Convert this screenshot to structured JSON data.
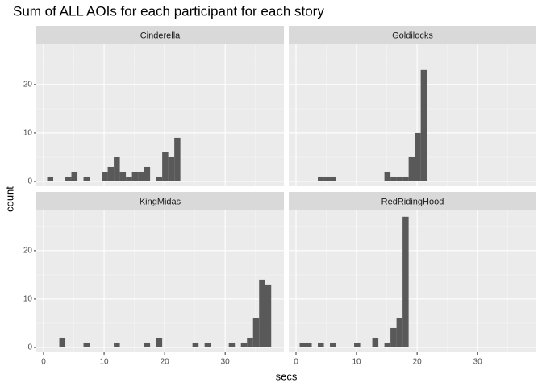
{
  "title": "Sum of ALL AOIs for each participant for each story",
  "xlabel": "secs",
  "ylabel": "count",
  "chart_data": [
    {
      "type": "histogram",
      "title": "Cinderella",
      "color": "#595959",
      "grid": true,
      "bins": [
        0.6,
        1.6,
        2.6,
        3.6,
        4.6,
        5.6,
        6.6,
        7.6,
        8.6,
        9.6,
        10.6,
        11.6,
        12.6,
        13.6,
        14.6,
        15.6,
        16.6,
        17.6,
        18.6,
        19.6,
        20.6,
        21.6,
        22.6,
        23.6,
        24.6,
        25.6,
        26.6,
        27.6,
        28.6,
        29.6,
        30.6,
        31.6,
        32.6,
        33.6,
        34.6,
        35.6,
        36.6,
        37.6
      ],
      "values": [
        1,
        0,
        0,
        1,
        2,
        0,
        1,
        0,
        0,
        2,
        3,
        5,
        2,
        1,
        2,
        2,
        3,
        0,
        1,
        6,
        5,
        9,
        0,
        0,
        0,
        0,
        0,
        0,
        0,
        0,
        0,
        0,
        0,
        0,
        0,
        0,
        0
      ],
      "xlim": [
        -1.2,
        39.7
      ],
      "ylim": [
        -1.0,
        28.3
      ],
      "xticks": [
        0,
        10,
        20,
        30
      ],
      "yticks": [
        0,
        10,
        20
      ]
    },
    {
      "type": "histogram",
      "title": "Goldilocks",
      "color": "#595959",
      "grid": true,
      "bins": [
        0.6,
        1.6,
        2.6,
        3.6,
        4.6,
        5.6,
        6.6,
        7.6,
        8.6,
        9.6,
        10.6,
        11.6,
        12.6,
        13.6,
        14.6,
        15.6,
        16.6,
        17.6,
        18.6,
        19.6,
        20.6,
        21.6,
        22.6,
        23.6,
        24.6,
        25.6,
        26.6,
        27.6,
        28.6,
        29.6,
        30.6,
        31.6,
        32.6,
        33.6,
        34.6,
        35.6,
        36.6,
        37.6
      ],
      "values": [
        0,
        0,
        0,
        1,
        1,
        1,
        0,
        0,
        0,
        0,
        0,
        0,
        0,
        0,
        2,
        1,
        1,
        1,
        5,
        10,
        23,
        0,
        0,
        0,
        0,
        0,
        0,
        0,
        0,
        0,
        0,
        0,
        0,
        0,
        0,
        0,
        0
      ],
      "xlim": [
        -1.2,
        39.7
      ],
      "ylim": [
        -1.0,
        28.3
      ],
      "xticks": [
        0,
        10,
        20,
        30
      ],
      "yticks": [
        0,
        10,
        20
      ]
    },
    {
      "type": "histogram",
      "title": "KingMidas",
      "color": "#595959",
      "grid": true,
      "bins": [
        0.6,
        1.6,
        2.6,
        3.6,
        4.6,
        5.6,
        6.6,
        7.6,
        8.6,
        9.6,
        10.6,
        11.6,
        12.6,
        13.6,
        14.6,
        15.6,
        16.6,
        17.6,
        18.6,
        19.6,
        20.6,
        21.6,
        22.6,
        23.6,
        24.6,
        25.6,
        26.6,
        27.6,
        28.6,
        29.6,
        30.6,
        31.6,
        32.6,
        33.6,
        34.6,
        35.6,
        36.6,
        37.6
      ],
      "values": [
        0,
        0,
        2,
        0,
        0,
        0,
        1,
        0,
        0,
        0,
        0,
        1,
        0,
        0,
        0,
        0,
        1,
        0,
        2,
        0,
        0,
        0,
        0,
        0,
        1,
        0,
        1,
        0,
        0,
        0,
        1,
        0,
        1,
        2,
        6,
        14,
        13
      ],
      "xlim": [
        -1.2,
        39.7
      ],
      "ylim": [
        -1.0,
        28.3
      ],
      "xticks": [
        0,
        10,
        20,
        30
      ],
      "yticks": [
        0,
        10,
        20
      ]
    },
    {
      "type": "histogram",
      "title": "RedRidingHood",
      "color": "#595959",
      "grid": true,
      "bins": [
        0.6,
        1.6,
        2.6,
        3.6,
        4.6,
        5.6,
        6.6,
        7.6,
        8.6,
        9.6,
        10.6,
        11.6,
        12.6,
        13.6,
        14.6,
        15.6,
        16.6,
        17.6,
        18.6,
        19.6,
        20.6,
        21.6,
        22.6,
        23.6,
        24.6,
        25.6,
        26.6,
        27.6,
        28.6,
        29.6,
        30.6,
        31.6,
        32.6,
        33.6,
        34.6,
        35.6,
        36.6,
        37.6
      ],
      "values": [
        1,
        1,
        0,
        1,
        0,
        1,
        0,
        0,
        0,
        1,
        0,
        0,
        2,
        0,
        1,
        4,
        6,
        27,
        0,
        0,
        0,
        0,
        0,
        0,
        0,
        0,
        0,
        0,
        0,
        0,
        0,
        0,
        0,
        0,
        0,
        0,
        0
      ],
      "xlim": [
        -1.2,
        39.7
      ],
      "ylim": [
        -1.0,
        28.3
      ],
      "xticks": [
        0,
        10,
        20,
        30
      ],
      "yticks": [
        0,
        10,
        20
      ]
    }
  ]
}
